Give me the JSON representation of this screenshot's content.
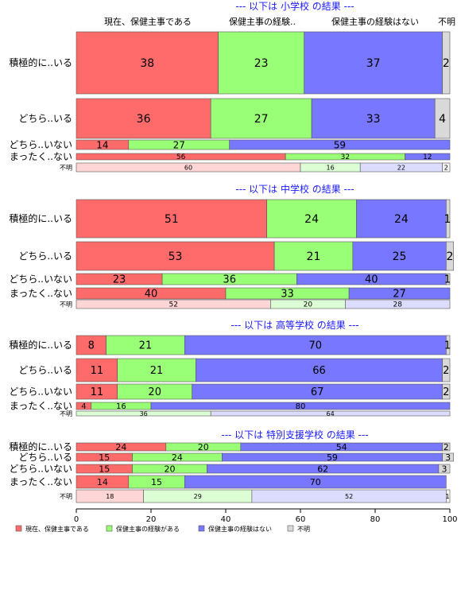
{
  "chart_data": {
    "type": "bar",
    "orientation": "horizontal",
    "stacked": "percent",
    "column_headers": [
      "現在、保健主事である",
      "保健主事の経験..",
      "保健主事の経験はない",
      "不明"
    ],
    "legend": [
      "現在、保健主事である",
      "保健主事の経験がある",
      "保健主事の経験はない",
      "不明"
    ],
    "colors": {
      "current": "#ff6b6b",
      "experienced": "#99ff77",
      "none": "#7777ff",
      "unknown": "#d9d9d9",
      "current_light": "#ffd6d6",
      "experienced_light": "#ddffd5",
      "none_light": "#dcdcff",
      "unknown_light": "#f2f2f2",
      "title": "#1a1aff"
    },
    "xlim": [
      0,
      100
    ],
    "xticks": [
      0,
      20,
      40,
      60,
      80,
      100
    ],
    "panels": [
      {
        "title": "--- 以下は 小学校 の結果 ---",
        "rows": [
          {
            "label": "積極的に..いる",
            "values": [
              38,
              23,
              37,
              2
            ],
            "labels": [
              "38",
              "23",
              "37",
              "2"
            ]
          },
          {
            "label": "どちら..いる",
            "values": [
              36,
              27,
              33,
              4
            ],
            "labels": [
              "36",
              "27",
              "33",
              "4"
            ]
          },
          {
            "label": "どちら..いない",
            "values": [
              14,
              27,
              59,
              0
            ],
            "labels": [
              "14",
              "27",
              "59",
              ""
            ]
          },
          {
            "label": "まったく..ない",
            "values": [
              56,
              32,
              12,
              0
            ],
            "labels": [
              "56",
              "32",
              "12",
              ""
            ]
          },
          {
            "label": "不明",
            "values": [
              60,
              16,
              22,
              2
            ],
            "labels": [
              "60",
              "16",
              "22",
              "2"
            ],
            "unknown": true
          }
        ]
      },
      {
        "title": "--- 以下は 中学校 の結果 ---",
        "rows": [
          {
            "label": "積極的に..いる",
            "values": [
              51,
              24,
              24,
              1
            ],
            "labels": [
              "51",
              "24",
              "24",
              "1"
            ]
          },
          {
            "label": "どちら..いる",
            "values": [
              53,
              21,
              25,
              2
            ],
            "labels": [
              "53",
              "21",
              "25",
              "2"
            ]
          },
          {
            "label": "どちら..いない",
            "values": [
              23,
              36,
              40,
              1
            ],
            "labels": [
              "23",
              "36",
              "40",
              "1"
            ]
          },
          {
            "label": "まったく..ない",
            "values": [
              40,
              33,
              27,
              0
            ],
            "labels": [
              "40",
              "33",
              "27",
              ""
            ]
          },
          {
            "label": "不明",
            "values": [
              52,
              20,
              28,
              0
            ],
            "labels": [
              "52",
              "20",
              "28",
              ""
            ],
            "unknown": true
          }
        ]
      },
      {
        "title": "--- 以下は 高等学校 の結果 ---",
        "rows": [
          {
            "label": "積極的に..いる",
            "values": [
              8,
              21,
              70,
              1
            ],
            "labels": [
              "8",
              "21",
              "70",
              "1"
            ]
          },
          {
            "label": "どちら..いる",
            "values": [
              11,
              21,
              66,
              2
            ],
            "labels": [
              "11",
              "21",
              "66",
              "2"
            ]
          },
          {
            "label": "どちら..いない",
            "values": [
              11,
              20,
              67,
              2
            ],
            "labels": [
              "11",
              "20",
              "67",
              "2"
            ]
          },
          {
            "label": "まったく..ない",
            "values": [
              4,
              16,
              80,
              0
            ],
            "labels": [
              "4",
              "16",
              "80",
              ""
            ]
          },
          {
            "label": "不明",
            "values": [
              0,
              36,
              64,
              0
            ],
            "labels": [
              "",
              "36",
              "64",
              ""
            ],
            "unknown": true
          }
        ]
      },
      {
        "title": "--- 以下は 特別支援学校 の結果 ---",
        "rows": [
          {
            "label": "積極的に..いる",
            "values": [
              24,
              20,
              54,
              2
            ],
            "labels": [
              "24",
              "20",
              "54",
              "2"
            ]
          },
          {
            "label": "どちら..いる",
            "values": [
              15,
              24,
              59,
              3
            ],
            "labels": [
              "15",
              "24",
              "59",
              "3"
            ]
          },
          {
            "label": "どちら..いない",
            "values": [
              15,
              20,
              62,
              3
            ],
            "labels": [
              "15",
              "20",
              "62",
              "3"
            ]
          },
          {
            "label": "まったく..ない",
            "values": [
              14,
              15,
              70,
              0
            ],
            "labels": [
              "14",
              "15",
              "70",
              ""
            ]
          },
          {
            "label": "不明",
            "values": [
              18,
              29,
              52,
              1
            ],
            "labels": [
              "18",
              "29",
              "52",
              "1"
            ],
            "unknown": true
          }
        ]
      }
    ]
  }
}
